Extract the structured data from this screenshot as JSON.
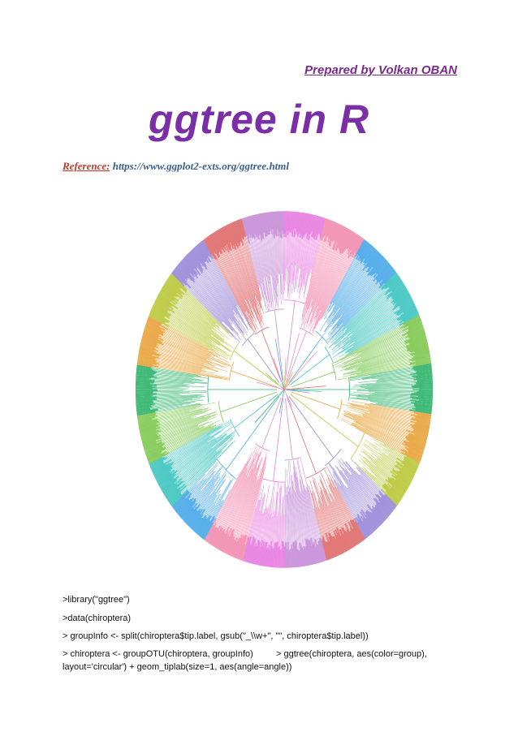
{
  "header": {
    "author": "Prepared by Volkan OBAN",
    "author_color": "#7a2a8c"
  },
  "title": {
    "text": "ggtree in R",
    "color": "#7b2fa6"
  },
  "reference": {
    "label": "Reference:",
    "url": "https://www.ggplot2-exts.org/ggtree.html"
  },
  "figure": {
    "kind": "circular phylogenetic tree",
    "colors": [
      "#e87fe0",
      "#f28fb0",
      "#4aa8e8",
      "#3fc4c0",
      "#7ec850",
      "#2db36a",
      "#e8a23a",
      "#b9c83a",
      "#9a8ad8",
      "#e06e6e",
      "#c88fd8"
    ]
  },
  "code": {
    "line1": ">library(\"ggtree\")",
    "line2": ">data(chiroptera)",
    "line3": "> groupInfo <- split(chiroptera$tip.label, gsub(\"_\\\\w+\", \"\", chiroptera$tip.label))",
    "line4_left": "> chiroptera <- groupOTU(chiroptera, groupInfo)",
    "line4_right": "> ggtree(chiroptera, aes(color=group),",
    "line5": "layout='circular') + geom_tiplab(size=1, aes(angle=angle))"
  }
}
